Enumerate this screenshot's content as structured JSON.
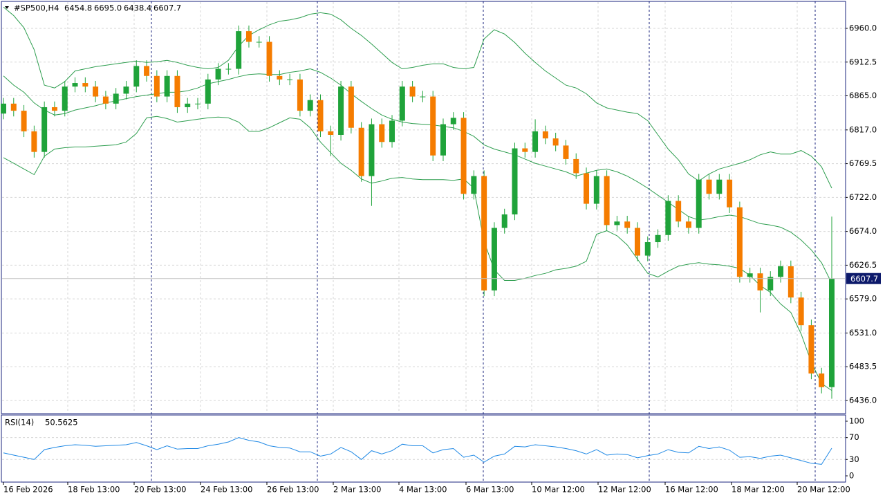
{
  "chart_data": {
    "type": "candlestick",
    "symbol": "#SP500,H4",
    "header_labels": [
      "6454.8",
      "6695.0",
      "6438.4",
      "6607.7"
    ],
    "up_color": "#1fa33a",
    "down_color": "#f57c00",
    "wick_color": "#1fa33a",
    "grid": true,
    "ylim": [
      6417.5,
      6997
    ],
    "yticks": [
      {
        "value": 6960,
        "label": "6960.0"
      },
      {
        "value": 6912.5,
        "label": "6912.5"
      },
      {
        "value": 6865,
        "label": "6865.0"
      },
      {
        "value": 6817,
        "label": "6817.0"
      },
      {
        "value": 6769.5,
        "label": "6769.5"
      },
      {
        "value": 6722,
        "label": "6722.0"
      },
      {
        "value": 6674,
        "label": "6674.0"
      },
      {
        "value": 6626.5,
        "label": "6626.5"
      },
      {
        "value": 6579,
        "label": "6579.0"
      },
      {
        "value": 6531,
        "label": "6531.0"
      },
      {
        "value": 6483.5,
        "label": "6483.5"
      },
      {
        "value": 6436,
        "label": "6436.0"
      }
    ],
    "xtick_labels": [
      "16 Feb 2026",
      "18 Feb 13:00",
      "20 Feb 13:00",
      "24 Feb 13:00",
      "26 Feb 13:00",
      "2 Mar 13:00",
      "4 Mar 13:00",
      "6 Mar 13:00",
      "10 Mar 12:00",
      "12 Mar 12:00",
      "16 Mar 12:00",
      "18 Mar 12:00",
      "20 Mar 12:00"
    ],
    "open": [
      6840,
      6854,
      6844,
      6815,
      6786,
      6849,
      6844,
      6878,
      6883,
      6878,
      6864,
      6854,
      6868,
      6878,
      6907,
      6893,
      6864,
      6893,
      6849,
      6854,
      6854,
      6888,
      6903,
      6903,
      6956,
      6941,
      6941,
      6893,
      6888,
      6888,
      6844,
      6859,
      6815,
      6810,
      6878,
      6820,
      6752,
      6825,
      6800,
      6830,
      6878,
      6864,
      6864,
      6781,
      6825,
      6834,
      6727,
      6752,
      6591,
      6679,
      6698,
      6791,
      6786,
      6815,
      6805,
      6795,
      6776,
      6756,
      6713,
      6752,
      6683,
      6688,
      6679,
      6640,
      6659,
      6669,
      6717,
      6688,
      6679,
      6747,
      6727,
      6747,
      6708,
      6610,
      6615,
      6591,
      6610,
      6625,
      6581,
      6542,
      6474,
      6454.8
    ],
    "high": [
      6862,
      6862,
      6852,
      6823,
      6857,
      6857,
      6886,
      6891,
      6891,
      6886,
      6872,
      6876,
      6886,
      6915,
      6915,
      6901,
      6901,
      6901,
      6862,
      6862,
      6896,
      6911,
      6911,
      6964,
      6964,
      6949,
      6949,
      6901,
      6896,
      6896,
      6867,
      6867,
      6823,
      6886,
      6886,
      6828,
      6833,
      6833,
      6838,
      6886,
      6886,
      6872,
      6872,
      6833,
      6842,
      6842,
      6760,
      6760,
      6687,
      6706,
      6799,
      6799,
      6832,
      6823,
      6813,
      6803,
      6784,
      6764,
      6760,
      6760,
      6696,
      6696,
      6687,
      6667,
      6677,
      6725,
      6725,
      6696,
      6755,
      6755,
      6755,
      6755,
      6716,
      6623,
      6623,
      6618,
      6633,
      6633,
      6589,
      6550,
      6482,
      6695
    ],
    "low": [
      6832,
      6836,
      6807,
      6778,
      6778,
      6836,
      6836,
      6870,
      6870,
      6856,
      6846,
      6846,
      6860,
      6870,
      6885,
      6856,
      6856,
      6841,
      6841,
      6846,
      6846,
      6880,
      6895,
      6895,
      6933,
      6933,
      6885,
      6880,
      6880,
      6836,
      6836,
      6807,
      6780,
      6802,
      6812,
      6744,
      6710,
      6792,
      6792,
      6822,
      6856,
      6856,
      6773,
      6773,
      6817,
      6719,
      6719,
      6583,
      6583,
      6671,
      6690,
      6778,
      6778,
      6797,
      6787,
      6768,
      6748,
      6705,
      6705,
      6675,
      6675,
      6671,
      6632,
      6632,
      6651,
      6661,
      6680,
      6671,
      6671,
      6719,
      6719,
      6700,
      6602,
      6602,
      6560,
      6583,
      6602,
      6573,
      6534,
      6466,
      6446,
      6438.4
    ],
    "close": [
      6854,
      6844,
      6815,
      6786,
      6849,
      6844,
      6878,
      6883,
      6878,
      6864,
      6854,
      6868,
      6878,
      6907,
      6893,
      6864,
      6893,
      6849,
      6854,
      6854,
      6888,
      6903,
      6903,
      6956,
      6941,
      6941,
      6893,
      6888,
      6888,
      6844,
      6859,
      6815,
      6810,
      6878,
      6820,
      6752,
      6825,
      6800,
      6830,
      6878,
      6864,
      6864,
      6781,
      6825,
      6834,
      6727,
      6752,
      6591,
      6679,
      6698,
      6791,
      6786,
      6815,
      6805,
      6795,
      6776,
      6756,
      6713,
      6752,
      6683,
      6688,
      6679,
      6640,
      6659,
      6669,
      6717,
      6688,
      6679,
      6747,
      6727,
      6747,
      6708,
      6610,
      6615,
      6591,
      6610,
      6625,
      6581,
      6542,
      6474,
      6454.8,
      6607.7
    ],
    "bollinger": {
      "color": "#2e9e4f",
      "upper": [
        6990,
        6978,
        6961,
        6930,
        6880,
        6876,
        6885,
        6900,
        6903,
        6906,
        6908,
        6910,
        6912,
        6914,
        6912,
        6913,
        6915,
        6912,
        6908,
        6905,
        6903,
        6905,
        6915,
        6935,
        6950,
        6958,
        6965,
        6970,
        6972,
        6975,
        6980,
        6982,
        6980,
        6972,
        6960,
        6950,
        6938,
        6925,
        6912,
        6903,
        6905,
        6908,
        6910,
        6910,
        6905,
        6903,
        6905,
        6945,
        6958,
        6952,
        6940,
        6925,
        6912,
        6900,
        6890,
        6880,
        6876,
        6868,
        6855,
        6848,
        6845,
        6842,
        6840,
        6830,
        6810,
        6790,
        6775,
        6755,
        6745,
        6755,
        6762,
        6766,
        6770,
        6775,
        6782,
        6786,
        6783,
        6783,
        6788,
        6780,
        6765,
        6735
      ],
      "middle": [
        6893,
        6880,
        6870,
        6855,
        6845,
        6838,
        6840,
        6845,
        6848,
        6851,
        6855,
        6858,
        6861,
        6864,
        6866,
        6868,
        6870,
        6870,
        6872,
        6876,
        6882,
        6885,
        6888,
        6892,
        6895,
        6896,
        6895,
        6895,
        6898,
        6900,
        6903,
        6898,
        6890,
        6880,
        6868,
        6857,
        6847,
        6838,
        6832,
        6828,
        6826,
        6825,
        6824,
        6822,
        6820,
        6815,
        6808,
        6796,
        6790,
        6786,
        6782,
        6776,
        6770,
        6766,
        6762,
        6758,
        6752,
        6756,
        6760,
        6762,
        6758,
        6752,
        6744,
        6735,
        6725,
        6715,
        6705,
        6695,
        6690,
        6692,
        6695,
        6697,
        6695,
        6690,
        6685,
        6683,
        6680,
        6673,
        6662,
        6648,
        6630,
        6601
      ],
      "lower": [
        6778,
        6770,
        6762,
        6754,
        6780,
        6790,
        6792,
        6793,
        6793,
        6794,
        6795,
        6796,
        6800,
        6812,
        6834,
        6836,
        6833,
        6828,
        6830,
        6832,
        6834,
        6835,
        6834,
        6828,
        6815,
        6815,
        6820,
        6827,
        6834,
        6832,
        6820,
        6800,
        6785,
        6770,
        6760,
        6748,
        6742,
        6745,
        6749,
        6750,
        6748,
        6747,
        6747,
        6747,
        6746,
        6748,
        6735,
        6660,
        6620,
        6605,
        6605,
        6608,
        6612,
        6615,
        6620,
        6622,
        6625,
        6632,
        6670,
        6675,
        6668,
        6655,
        6635,
        6615,
        6610,
        6618,
        6625,
        6628,
        6630,
        6628,
        6627,
        6625,
        6622,
        6612,
        6598,
        6588,
        6572,
        6560,
        6530,
        6490,
        6460,
        6450
      ]
    },
    "rsi": {
      "title": "RSI(14)",
      "color": "#1e88e5",
      "ylim": [
        -11.4,
        110.1
      ],
      "yticks": [
        100,
        70,
        30,
        0
      ],
      "values": [
        42,
        38,
        34,
        30,
        48,
        52,
        55,
        57,
        56,
        54,
        55,
        56,
        57,
        61,
        55,
        48,
        55,
        49,
        50,
        50,
        55,
        58,
        62,
        70,
        65,
        62,
        55,
        52,
        51,
        44,
        44,
        36,
        40,
        52,
        44,
        30,
        46,
        40,
        46,
        58,
        55,
        55,
        42,
        48,
        50,
        34,
        38,
        25,
        36,
        40,
        54,
        53,
        57,
        55,
        53,
        50,
        46,
        40,
        48,
        38,
        40,
        39,
        33,
        37,
        40,
        48,
        43,
        42,
        54,
        50,
        53,
        47,
        34,
        35,
        32,
        36,
        38,
        33,
        28,
        23,
        21,
        50.5625
      ]
    }
  }
}
